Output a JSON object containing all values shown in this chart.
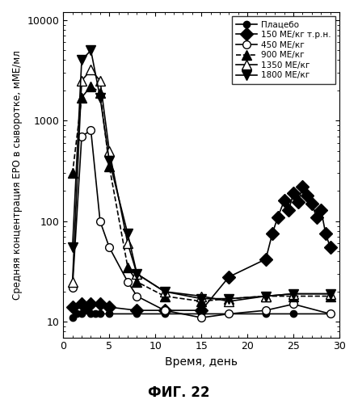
{
  "title": "ФИГ. 22",
  "ylabel": "Средняя концентрация ЕРО в сыворотке, мМЕ/мл",
  "xlabel": "Время, день",
  "series": [
    {
      "label": "Плацебо",
      "marker": "o",
      "mfc": "black",
      "mec": "black",
      "linestyle": "-",
      "lw": 1.2,
      "markersize": 6,
      "x": [
        1,
        1.5,
        2,
        2.5,
        3,
        3.5,
        4,
        5,
        8,
        11,
        15,
        18,
        22,
        25,
        29
      ],
      "y": [
        11,
        12,
        12,
        13,
        12,
        12,
        12,
        12,
        12,
        12,
        12,
        12,
        12,
        12,
        12
      ]
    },
    {
      "label": "150 МЕ/кг т.р.н.",
      "marker": "D",
      "mfc": "black",
      "mec": "black",
      "linestyle": "-",
      "lw": 1.2,
      "markersize": 8,
      "x": [
        1,
        2,
        3,
        4,
        5,
        8,
        11,
        15,
        18,
        22,
        22.7,
        23.3,
        24,
        24.5,
        25,
        25.5,
        26,
        26.5,
        27,
        27.5,
        28,
        28.5,
        29
      ],
      "y": [
        14,
        15,
        15,
        15,
        14,
        13,
        13,
        13,
        28,
        42,
        75,
        110,
        160,
        130,
        190,
        155,
        220,
        180,
        150,
        110,
        130,
        75,
        55
      ]
    },
    {
      "label": "450 МЕ/кг",
      "marker": "o",
      "mfc": "white",
      "mec": "black",
      "linestyle": "-",
      "lw": 1.2,
      "markersize": 7,
      "x": [
        1,
        2,
        3,
        4,
        5,
        7,
        8,
        11,
        15,
        18,
        22,
        25,
        29
      ],
      "y": [
        22,
        700,
        800,
        100,
        55,
        25,
        18,
        13,
        11,
        12,
        13,
        15,
        12
      ]
    },
    {
      "label": "900 МЕ/кг",
      "marker": "^",
      "mfc": "black",
      "mec": "black",
      "linestyle": "--",
      "lw": 1.2,
      "markersize": 8,
      "x": [
        1,
        2,
        3,
        4,
        5,
        7,
        8,
        11,
        15,
        18,
        22,
        25,
        29
      ],
      "y": [
        300,
        1700,
        2200,
        1900,
        350,
        35,
        25,
        18,
        16,
        17,
        18,
        18,
        18
      ]
    },
    {
      "label": "1350 МЕ/кг",
      "marker": "^",
      "mfc": "white",
      "mec": "black",
      "linestyle": "-",
      "lw": 1.2,
      "markersize": 8,
      "x": [
        1,
        2,
        3,
        4,
        5,
        7,
        8,
        11,
        15,
        18,
        22,
        25,
        29
      ],
      "y": [
        25,
        2500,
        3200,
        2500,
        500,
        60,
        30,
        20,
        18,
        16,
        18,
        19,
        19
      ]
    },
    {
      "label": "1800 МЕ/кг",
      "marker": "v",
      "mfc": "black",
      "mec": "black",
      "linestyle": "-",
      "lw": 1.2,
      "markersize": 8,
      "x": [
        1,
        2,
        3,
        4,
        5,
        7,
        8,
        11,
        15,
        18,
        22,
        25,
        29
      ],
      "y": [
        55,
        4000,
        5000,
        1700,
        400,
        75,
        30,
        20,
        17,
        17,
        18,
        19,
        19
      ]
    }
  ]
}
